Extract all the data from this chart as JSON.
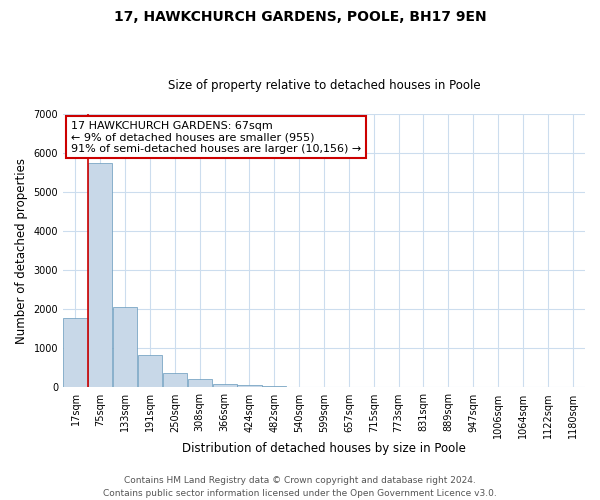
{
  "title": "17, HAWKCHURCH GARDENS, POOLE, BH17 9EN",
  "subtitle": "Size of property relative to detached houses in Poole",
  "xlabel": "Distribution of detached houses by size in Poole",
  "ylabel": "Number of detached properties",
  "bin_labels": [
    "17sqm",
    "75sqm",
    "133sqm",
    "191sqm",
    "250sqm",
    "308sqm",
    "366sqm",
    "424sqm",
    "482sqm",
    "540sqm",
    "599sqm",
    "657sqm",
    "715sqm",
    "773sqm",
    "831sqm",
    "889sqm",
    "947sqm",
    "1006sqm",
    "1064sqm",
    "1122sqm",
    "1180sqm"
  ],
  "bar_heights": [
    1780,
    5750,
    2050,
    820,
    370,
    220,
    100,
    60,
    30,
    15,
    5,
    2,
    0,
    0,
    0,
    0,
    0,
    0,
    0,
    0,
    0
  ],
  "bar_color": "#c8d8e8",
  "bar_edge_color": "#6699bb",
  "ylim": [
    0,
    7000
  ],
  "yticks": [
    0,
    1000,
    2000,
    3000,
    4000,
    5000,
    6000,
    7000
  ],
  "annotation_box_text_line1": "17 HAWKCHURCH GARDENS: 67sqm",
  "annotation_box_text_line2": "← 9% of detached houses are smaller (955)",
  "annotation_box_text_line3": "91% of semi-detached houses are larger (10,156) →",
  "annotation_box_color": "#ffffff",
  "annotation_box_edge_color": "#cc0000",
  "red_line_color": "#cc0000",
  "footer_line1": "Contains HM Land Registry data © Crown copyright and database right 2024.",
  "footer_line2": "Contains public sector information licensed under the Open Government Licence v3.0.",
  "background_color": "#ffffff",
  "grid_color": "#ccddee",
  "title_fontsize": 10,
  "subtitle_fontsize": 8.5,
  "axis_label_fontsize": 8.5,
  "tick_fontsize": 7,
  "footer_fontsize": 6.5,
  "annotation_fontsize": 8
}
